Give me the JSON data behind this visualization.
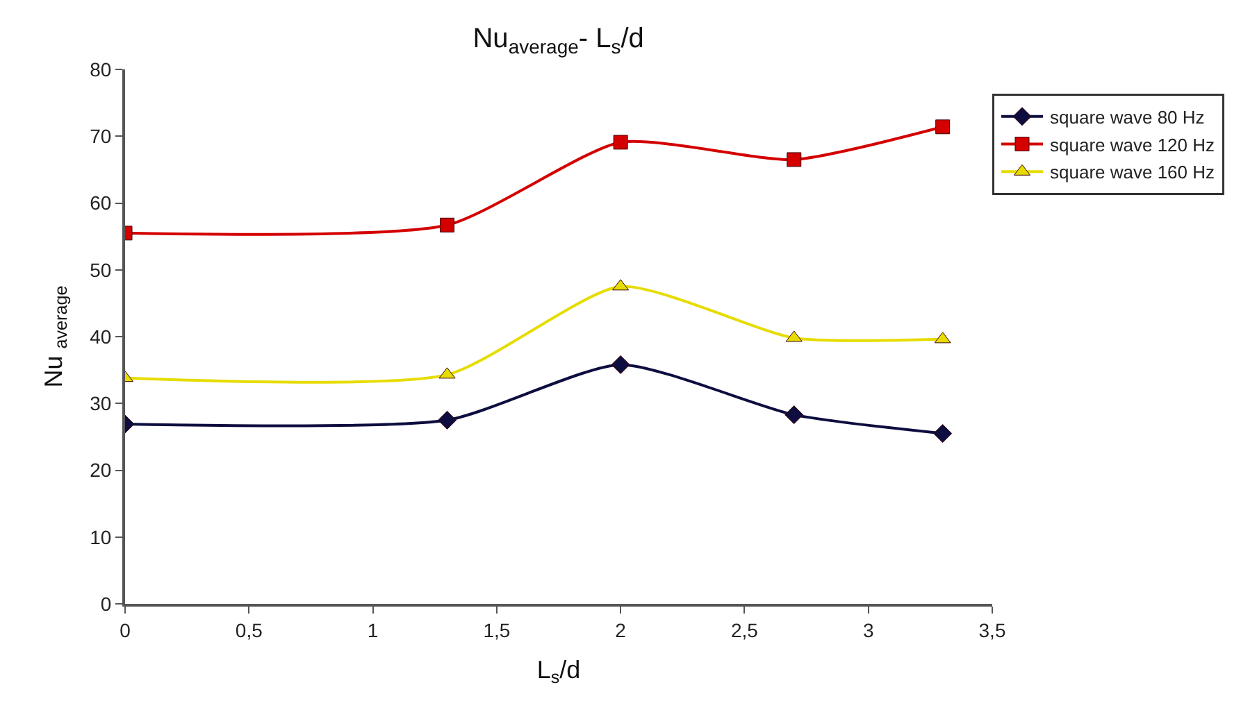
{
  "chart_data": {
    "type": "line",
    "title": "Nu$_{average}$- L$_{s}$/d",
    "xlabel": "L$_{s}$/d",
    "ylabel": "Nu $_{average}$",
    "x": [
      0,
      1.3,
      2,
      2.7,
      3.3
    ],
    "series": [
      {
        "name": "square wave 80 Hz",
        "color": "#0d0d3f",
        "marker": "diamond",
        "values": [
          26.9,
          27.5,
          35.8,
          28.3,
          25.5
        ]
      },
      {
        "name": "square wave 120 Hz",
        "color": "#d40000",
        "marker": "square",
        "values": [
          55.5,
          56.7,
          69.1,
          66.5,
          71.4
        ]
      },
      {
        "name": "square wave 160 Hz",
        "color": "#e6dc00",
        "marker": "triangle",
        "values": [
          33.8,
          34.3,
          47.5,
          39.8,
          39.6
        ]
      }
    ],
    "xlim": [
      0,
      3.5
    ],
    "xticks": [
      0,
      {
        "value": 0.5,
        "label": "0,5"
      },
      1,
      {
        "value": 1.5,
        "label": "1,5"
      },
      2,
      {
        "value": 2.5,
        "label": "2,5"
      },
      3,
      {
        "value": 3.5,
        "label": "3,5"
      }
    ],
    "ylim": [
      0,
      80
    ],
    "yticks": [
      0,
      10,
      20,
      30,
      40,
      50,
      60,
      70,
      80
    ],
    "legend": "right"
  }
}
